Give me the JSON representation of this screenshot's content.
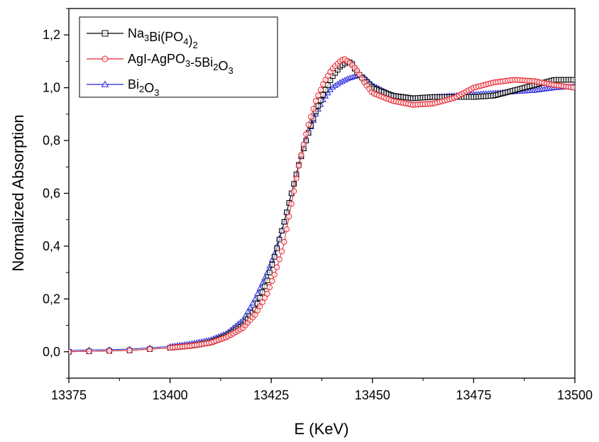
{
  "chart_data": {
    "type": "scatter",
    "title": "",
    "xlabel": "E (KeV)",
    "ylabel": "Normalized Absorption",
    "xlim": [
      13375,
      13500
    ],
    "ylim": [
      -0.1,
      1.3
    ],
    "x_ticks": [
      "13375",
      "13400",
      "13425",
      "13450",
      "13475",
      "13500"
    ],
    "y_ticks": [
      "0,0",
      "0,2",
      "0,4",
      "0,6",
      "0,8",
      "1,0",
      "1,2"
    ],
    "x_tick_values": [
      13375,
      13400,
      13425,
      13450,
      13475,
      13500
    ],
    "y_tick_values": [
      0.0,
      0.2,
      0.4,
      0.6,
      0.8,
      1.0,
      1.2
    ],
    "grid": false,
    "legend_position": "top-left",
    "series": [
      {
        "name": "Na3Bi(PO4)2",
        "legend": {
          "base": "Na",
          "s1": "3",
          "mid": "Bi(PO",
          "s2": "4",
          "mid2": ")",
          "s3": "2"
        },
        "color": "#000000",
        "marker": "square",
        "x": [
          13375,
          13390,
          13400,
          13405,
          13410,
          13414,
          13418,
          13421,
          13424,
          13426,
          13428,
          13429,
          13430,
          13431,
          13432,
          13434,
          13436,
          13438,
          13440,
          13442,
          13444,
          13445,
          13446,
          13448,
          13450,
          13455,
          13460,
          13465,
          13470,
          13475,
          13480,
          13485,
          13490,
          13495,
          13500
        ],
        "y": [
          0.0,
          0.005,
          0.015,
          0.022,
          0.035,
          0.06,
          0.1,
          0.16,
          0.27,
          0.37,
          0.48,
          0.54,
          0.6,
          0.66,
          0.72,
          0.82,
          0.91,
          0.98,
          1.04,
          1.08,
          1.1,
          1.09,
          1.06,
          1.03,
          1.0,
          0.97,
          0.96,
          0.965,
          0.965,
          0.965,
          0.97,
          0.99,
          1.01,
          1.03,
          1.03
        ]
      },
      {
        "name": "AgI-AgPO3-5Bi2O3",
        "legend": {
          "base": "AgI-AgPO",
          "s1": "3",
          "mid": "-5Bi",
          "s2": "2",
          "mid2": "O",
          "s3": "3"
        },
        "color": "#e8212b",
        "marker": "circle",
        "x": [
          13375,
          13390,
          13400,
          13405,
          13410,
          13414,
          13418,
          13421,
          13424,
          13426,
          13428,
          13429,
          13430,
          13431,
          13432,
          13434,
          13436,
          13438,
          13440,
          13442,
          13443,
          13444,
          13446,
          13448,
          13450,
          13455,
          13460,
          13465,
          13470,
          13475,
          13480,
          13485,
          13490,
          13495,
          13500
        ],
        "y": [
          0.0,
          0.005,
          0.015,
          0.022,
          0.034,
          0.055,
          0.09,
          0.14,
          0.22,
          0.3,
          0.4,
          0.48,
          0.56,
          0.64,
          0.72,
          0.85,
          0.95,
          1.02,
          1.07,
          1.1,
          1.11,
          1.1,
          1.07,
          1.02,
          0.98,
          0.95,
          0.935,
          0.94,
          0.96,
          1.0,
          1.02,
          1.03,
          1.025,
          1.01,
          1.0
        ]
      },
      {
        "name": "Bi2O3",
        "legend": {
          "base": "Bi",
          "s1": "2",
          "mid": "O",
          "s2": "3",
          "mid2": "",
          "s3": ""
        },
        "color": "#2222dd",
        "marker": "triangle",
        "x": [
          13375,
          13390,
          13400,
          13405,
          13410,
          13414,
          13418,
          13421,
          13424,
          13426,
          13428,
          13430,
          13432,
          13434,
          13436,
          13438,
          13440,
          13442,
          13444,
          13446,
          13447,
          13448,
          13450,
          13455,
          13460,
          13465,
          13470,
          13475,
          13480,
          13485,
          13490,
          13495,
          13500
        ],
        "y": [
          0.005,
          0.01,
          0.02,
          0.03,
          0.045,
          0.07,
          0.12,
          0.2,
          0.3,
          0.38,
          0.48,
          0.6,
          0.72,
          0.82,
          0.9,
          0.96,
          1.0,
          1.02,
          1.035,
          1.045,
          1.045,
          1.04,
          1.01,
          0.97,
          0.96,
          0.965,
          0.97,
          0.975,
          0.98,
          0.985,
          0.99,
          1.0,
          1.005
        ]
      }
    ]
  }
}
